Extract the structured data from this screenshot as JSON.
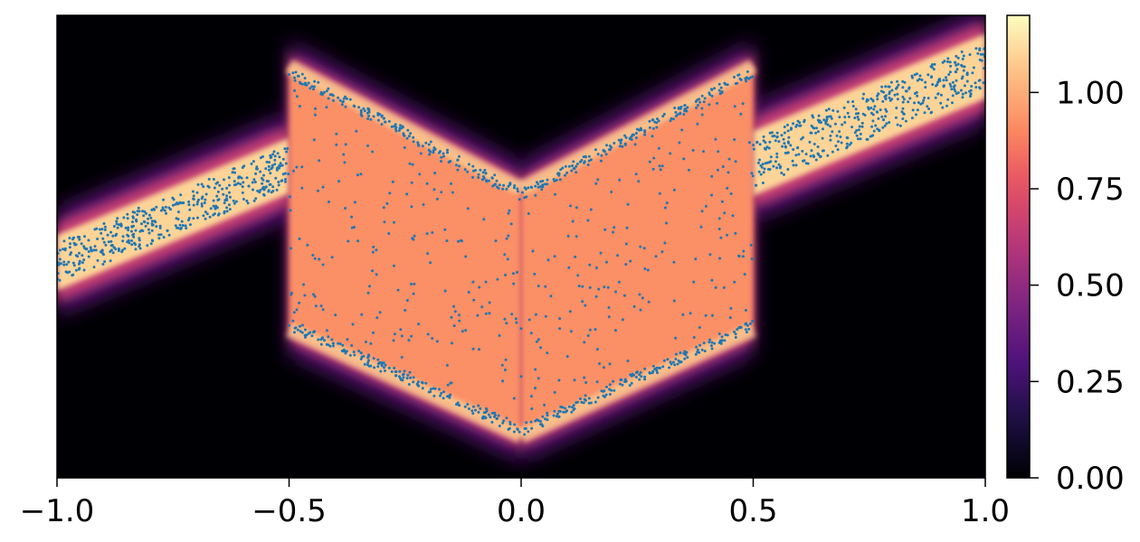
{
  "chart_data": {
    "type": "heatmap",
    "title": "",
    "xlabel": "",
    "ylabel": "",
    "xlim": [
      -1.0,
      1.0
    ],
    "ylim": [
      -1.0,
      1.0
    ],
    "x_ticks": [
      -1.0,
      -0.5,
      0.0,
      0.5,
      1.0
    ],
    "x_tick_labels": [
      "−1.0",
      "−0.5",
      "0.0",
      "0.5",
      "1.0"
    ],
    "colormap": "magma",
    "colorbar": {
      "range": [
        0.0,
        1.2
      ],
      "ticks": [
        0.0,
        0.25,
        0.5,
        0.75,
        1.0
      ],
      "tick_labels": [
        "0.00",
        "0.25",
        "0.50",
        "0.75",
        "1.00"
      ]
    },
    "density_regions": [
      {
        "x_range": [
          -1.0,
          -0.5
        ],
        "type": "band",
        "center_line": [
          [
            -1.0,
            -0.07
          ],
          [
            -0.5,
            0.35
          ]
        ],
        "half_width": 0.12,
        "value": 1.1
      },
      {
        "x_range": [
          -0.5,
          0.0
        ],
        "type": "region",
        "upper": [
          [
            -0.5,
            0.78
          ],
          [
            0.0,
            0.25
          ]
        ],
        "lower": [
          [
            -0.5,
            -0.36
          ],
          [
            0.0,
            -0.82
          ]
        ],
        "value": 0.92
      },
      {
        "x_range": [
          0.0,
          0.5
        ],
        "type": "region",
        "upper": [
          [
            0.0,
            0.25
          ],
          [
            0.5,
            0.78
          ]
        ],
        "lower": [
          [
            0.0,
            -0.82
          ],
          [
            0.5,
            -0.36
          ]
        ],
        "value": 0.92
      },
      {
        "x_range": [
          0.5,
          1.0
        ],
        "type": "band",
        "center_line": [
          [
            0.5,
            0.36
          ],
          [
            1.0,
            0.78
          ]
        ],
        "half_width": 0.14,
        "value": 1.1
      }
    ],
    "scatter_color": "#1f77b4",
    "plot_background": "#000004"
  }
}
